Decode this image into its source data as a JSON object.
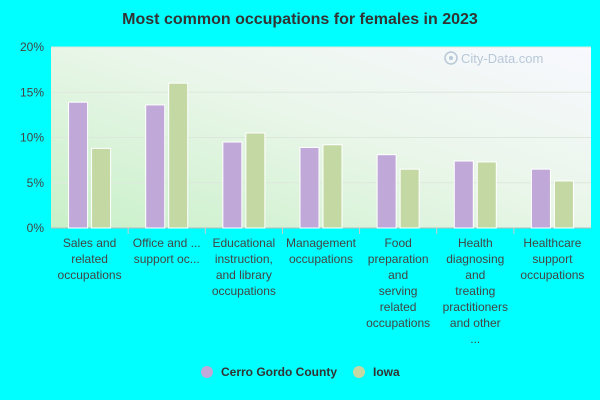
{
  "watermark": "City-Data.com",
  "chart_data": {
    "type": "bar",
    "title": "Most common occupations for females in 2023",
    "xlabel": "",
    "ylabel": "",
    "ylim": [
      0,
      20
    ],
    "yticks": [
      "0%",
      "5%",
      "10%",
      "15%",
      "20%"
    ],
    "categories": [
      [
        "Sales and",
        "related",
        "occupations"
      ],
      [
        "Office and ...",
        "support oc..."
      ],
      [
        "Educational",
        "instruction,",
        "and library",
        "occupations"
      ],
      [
        "Management",
        "occupations"
      ],
      [
        "Food",
        "preparation",
        "and",
        "serving",
        "related",
        "occupations"
      ],
      [
        "Health",
        "diagnosing",
        "and",
        "treating",
        "practitioners",
        "and other",
        "..."
      ],
      [
        "Healthcare",
        "support",
        "occupations"
      ]
    ],
    "series": [
      {
        "name": "Cerro Gordo County",
        "color": "#c0a8d8",
        "values": [
          13.9,
          13.6,
          9.5,
          8.9,
          8.1,
          7.4,
          6.5
        ]
      },
      {
        "name": "Iowa",
        "color": "#c4d8a4",
        "values": [
          8.8,
          16.0,
          10.5,
          9.2,
          6.5,
          7.3,
          5.2
        ]
      }
    ],
    "grid": true,
    "legend": "bottom-center"
  }
}
